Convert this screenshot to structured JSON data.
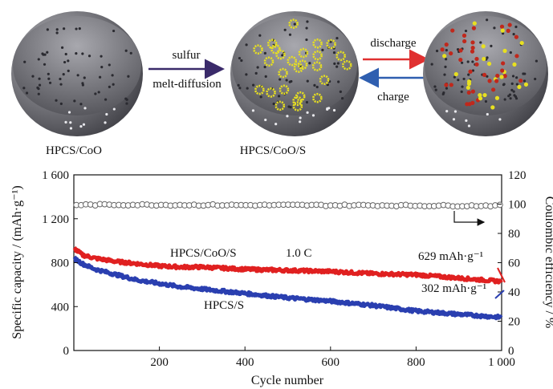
{
  "schematic": {
    "labels": {
      "sphere1": "HPCS/CoO",
      "sphere2": "HPCS/CoO/S",
      "arrow1_top": "sulfur",
      "arrow1_bottom": "melt-diffusion",
      "arrow2_top": "discharge",
      "arrow2_bottom": "charge"
    },
    "colors": {
      "shell": "#6e6e72",
      "sulfur": "#e8e020",
      "cobalt_oxide": "#c0281c",
      "discharge_arrow": "#e03030",
      "charge_arrow": "#2f5fb0",
      "process_arrow": "#3a2a6a"
    }
  },
  "chart_data": {
    "type": "line",
    "xlabel": "Cycle number",
    "ylabel": "Specific capacity  / (mAh·g⁻¹)",
    "y2label": "Coulombic efficiency  / %",
    "xlim": [
      0,
      1000
    ],
    "ylim": [
      0,
      1600
    ],
    "y2lim": [
      0,
      120
    ],
    "xticks": [
      "200",
      "400",
      "600",
      "800",
      "1 000"
    ],
    "yticks": [
      "0",
      "400",
      "800",
      "1 200",
      "1 600"
    ],
    "y2ticks": [
      "0",
      "20",
      "40",
      "60",
      "80",
      "100",
      "120"
    ],
    "grid": false,
    "series": [
      {
        "name": "HPCS/CoO/S",
        "color": "#e02020",
        "axis": "left",
        "x": [
          1,
          20,
          50,
          100,
          150,
          200,
          250,
          300,
          400,
          500,
          600,
          700,
          800,
          900,
          1000
        ],
        "y": [
          930,
          870,
          840,
          810,
          790,
          770,
          760,
          760,
          740,
          730,
          720,
          700,
          690,
          660,
          629
        ]
      },
      {
        "name": "HPCS/S",
        "color": "#2a3fb0",
        "axis": "left",
        "x": [
          1,
          20,
          50,
          100,
          150,
          200,
          250,
          300,
          400,
          500,
          600,
          700,
          800,
          900,
          1000
        ],
        "y": [
          840,
          790,
          740,
          690,
          640,
          610,
          580,
          560,
          520,
          480,
          450,
          410,
          360,
          330,
          302
        ]
      },
      {
        "name": "Coulombic efficiency",
        "color": "#666666",
        "axis": "right",
        "x": [
          1,
          100,
          200,
          300,
          400,
          500,
          600,
          700,
          800,
          900,
          1000
        ],
        "y": [
          99.5,
          99.6,
          99.5,
          99.4,
          99.3,
          99.3,
          99.2,
          99.2,
          99.0,
          98.9,
          99.0
        ]
      }
    ],
    "annotations": {
      "rate": "1.0 C",
      "end_value_top": "629 mAh·g⁻¹",
      "end_value_bottom": "302 mAh·g⁻¹"
    }
  }
}
